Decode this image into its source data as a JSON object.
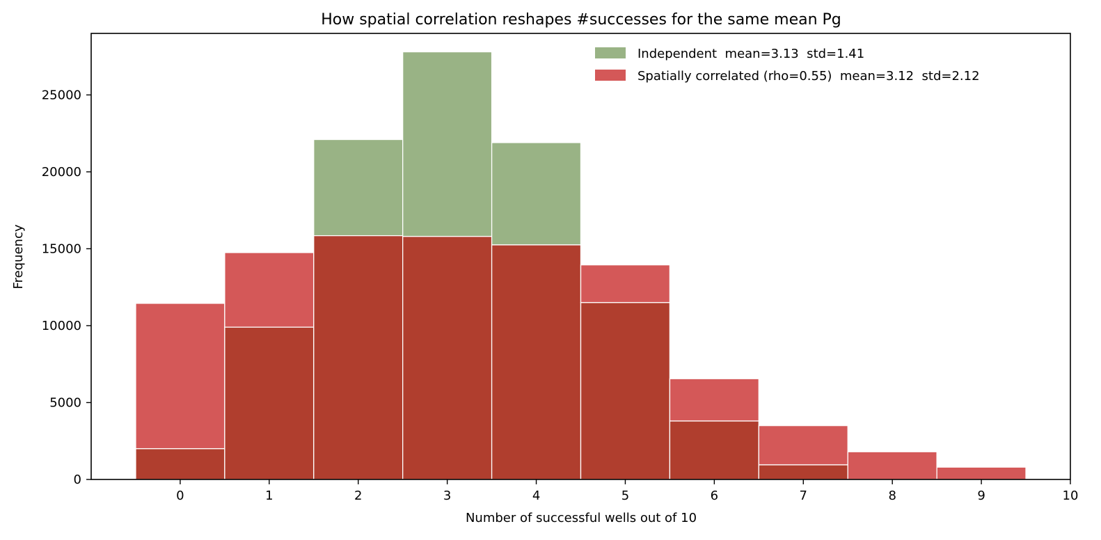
{
  "chart_data": {
    "type": "bar",
    "title": "How spatial correlation reshapes #successes for the same mean Pg",
    "xlabel": "Number of successful wells out of 10",
    "ylabel": "Frequency",
    "xlim": [
      -1,
      10
    ],
    "ylim": [
      0,
      29000
    ],
    "xticks": [
      "0",
      "1",
      "2",
      "3",
      "4",
      "5",
      "6",
      "7",
      "8",
      "9",
      "10"
    ],
    "yticks": [
      "0",
      "5000",
      "10000",
      "15000",
      "20000",
      "25000"
    ],
    "categories": [
      "0",
      "1",
      "2",
      "3",
      "4",
      "5",
      "6",
      "7",
      "8",
      "9"
    ],
    "grid": false,
    "legend_position": "top-right",
    "overlap_color": "#b03e2e",
    "series": [
      {
        "name": "Independent  mean=3.13  std=1.41",
        "color": "#99b385",
        "values": [
          2000,
          9900,
          22100,
          27800,
          21900,
          11500,
          3800,
          950,
          0,
          0
        ]
      },
      {
        "name": "Spatially correlated (rho=0.55)  mean=3.12  std=2.12",
        "color": "#d45858",
        "values": [
          11450,
          14750,
          15850,
          15800,
          15250,
          13950,
          6550,
          3500,
          1800,
          800
        ]
      }
    ]
  }
}
